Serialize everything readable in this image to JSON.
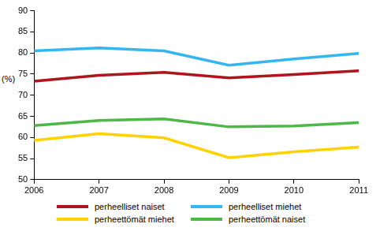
{
  "chart_data": {
    "type": "line",
    "y_label": "(%)",
    "categories": [
      "2006",
      "2007",
      "2008",
      "2009",
      "2010",
      "2011"
    ],
    "series": [
      {
        "name": "perheelliset naiset",
        "color": "#b0141c",
        "values": [
          73.3,
          74.7,
          75.4,
          74.1,
          74.9,
          75.8
        ]
      },
      {
        "name": "perheelliset miehet",
        "color": "#35b6f0",
        "values": [
          80.5,
          81.2,
          80.5,
          77.1,
          78.6,
          79.9
        ]
      },
      {
        "name": "perheettömät miehet",
        "color": "#ffd200",
        "values": [
          59.3,
          60.9,
          59.9,
          55.2,
          56.6,
          57.7
        ]
      },
      {
        "name": "perheettömät naiset",
        "color": "#4db848",
        "values": [
          62.8,
          64.0,
          64.4,
          62.5,
          62.7,
          63.5
        ]
      }
    ],
    "ylim": [
      50,
      90
    ],
    "yticks": [
      50,
      55,
      60,
      65,
      70,
      75,
      80,
      85,
      90
    ],
    "grid": false,
    "legend": "bottom"
  }
}
